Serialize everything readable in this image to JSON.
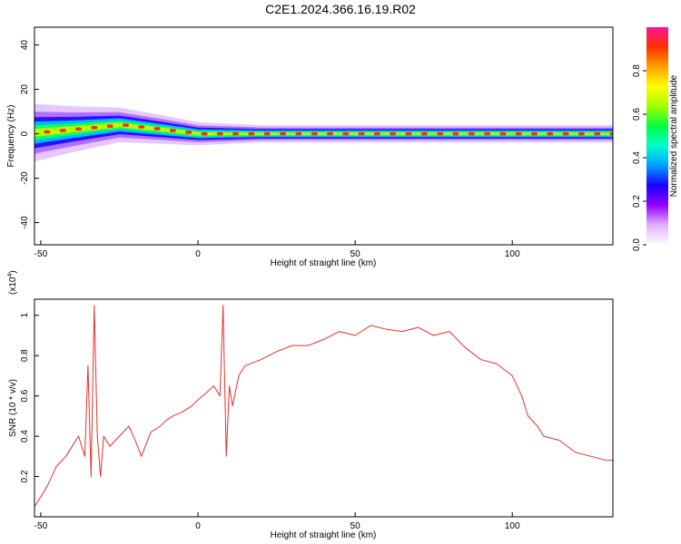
{
  "title": "C2E1.2024.366.16.19.R02",
  "chart_data": [
    {
      "type": "heatmap",
      "xlabel": "Height of straight line (km)",
      "ylabel": "Frequency (Hz)",
      "xlim": [
        -52,
        132
      ],
      "ylim": [
        -50,
        48
      ],
      "x_ticks": [
        -50,
        0,
        50,
        100
      ],
      "y_ticks": [
        -40,
        -20,
        0,
        20,
        40
      ],
      "colorbar": {
        "label": "Normalized spectral amplitude",
        "range": [
          0,
          1
        ],
        "ticks": [
          "0.0",
          "0.2",
          "0.4",
          "0.6",
          "0.8"
        ],
        "colors": [
          "#ffffff",
          "#e0b0ff",
          "#9400ff",
          "#1a00ff",
          "#00a0ff",
          "#00ffd0",
          "#00ff40",
          "#a0ff00",
          "#ffff00",
          "#ffa000",
          "#ff3000",
          "#ff1493"
        ]
      },
      "ridge": [
        {
          "x": -52,
          "f": 0.5,
          "halfwidth": 5
        },
        {
          "x": -40,
          "f": 2,
          "halfwidth": 4
        },
        {
          "x": -25,
          "f": 4,
          "halfwidth": 3
        },
        {
          "x": -12,
          "f": 2,
          "halfwidth": 2.5
        },
        {
          "x": 0,
          "f": 0,
          "halfwidth": 2
        },
        {
          "x": 20,
          "f": 0,
          "halfwidth": 1.5
        },
        {
          "x": 132,
          "f": 0,
          "halfwidth": 1.5
        }
      ]
    },
    {
      "type": "line",
      "xlabel": "Height of straight line (km)",
      "ylabel": "SNR (10 * v/v)",
      "y_multiplier": "(x10",
      "y_multiplier_exp": "4",
      "y_multiplier_close": ")",
      "xlim": [
        -52,
        132
      ],
      "ylim": [
        0,
        1.08
      ],
      "x_ticks": [
        -50,
        0,
        50,
        100
      ],
      "y_ticks": [
        0.2,
        0.4,
        0.6,
        0.8,
        1
      ],
      "color": "#e53030",
      "series": [
        {
          "x": [
            -52,
            -48,
            -45,
            -42,
            -40,
            -38,
            -36,
            -35,
            -34,
            -33,
            -32,
            -31,
            -30,
            -28,
            -25,
            -22,
            -20,
            -18,
            -15,
            -12,
            -10,
            -8,
            -5,
            -2,
            0,
            3,
            5,
            7,
            8,
            9,
            10,
            11,
            13,
            15,
            20,
            25,
            30,
            35,
            40,
            45,
            50,
            55,
            60,
            65,
            70,
            75,
            80,
            85,
            90,
            95,
            100,
            103,
            105,
            108,
            110,
            115,
            120,
            125,
            130,
            132
          ],
          "y": [
            0.05,
            0.15,
            0.25,
            0.3,
            0.35,
            0.4,
            0.3,
            0.75,
            0.2,
            1.05,
            0.4,
            0.2,
            0.4,
            0.35,
            0.4,
            0.45,
            0.38,
            0.3,
            0.42,
            0.45,
            0.48,
            0.5,
            0.52,
            0.55,
            0.58,
            0.62,
            0.65,
            0.6,
            1.05,
            0.3,
            0.65,
            0.55,
            0.7,
            0.75,
            0.78,
            0.82,
            0.85,
            0.85,
            0.88,
            0.92,
            0.9,
            0.95,
            0.93,
            0.92,
            0.94,
            0.9,
            0.92,
            0.84,
            0.78,
            0.76,
            0.7,
            0.6,
            0.5,
            0.45,
            0.4,
            0.38,
            0.32,
            0.3,
            0.28,
            0.28
          ]
        }
      ]
    }
  ]
}
